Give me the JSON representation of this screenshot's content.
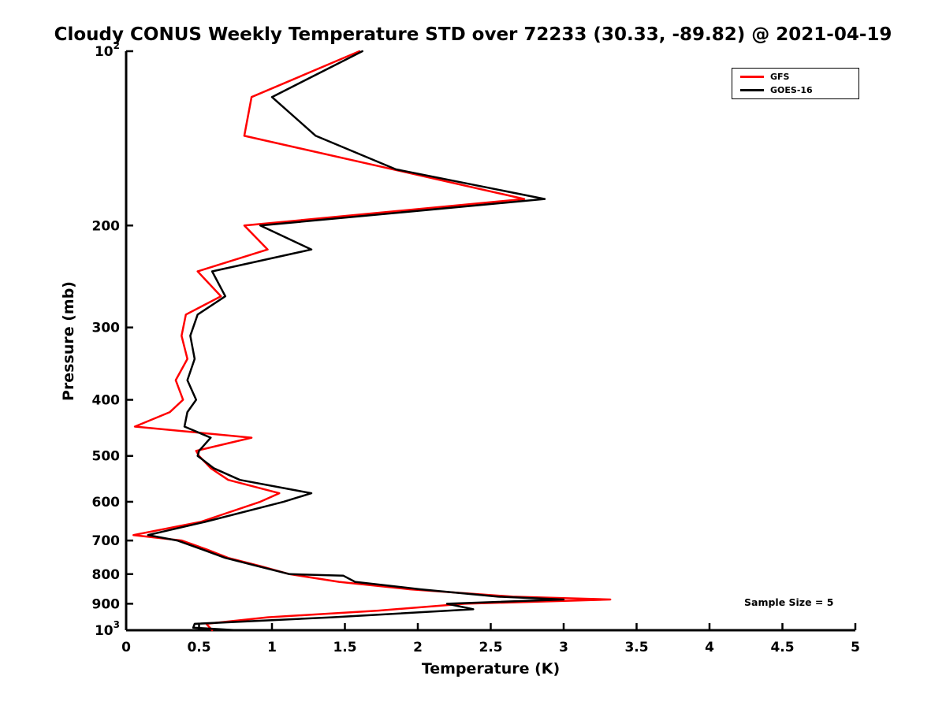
{
  "chart_data": {
    "type": "line",
    "title": "Cloudy CONUS Weekly Temperature STD over 72233 (30.33, -89.82) @ 2021-04-19",
    "xlabel": "Temperature (K)",
    "ylabel": "Pressure (mb)",
    "annotation": "Sample Size = 5",
    "grid": false,
    "legend_position": "top-right",
    "x_axis": {
      "min": 0,
      "max": 5,
      "ticks": [
        {
          "v": 0,
          "label": "0"
        },
        {
          "v": 0.5,
          "label": "0.5"
        },
        {
          "v": 1,
          "label": "1"
        },
        {
          "v": 1.5,
          "label": "1.5"
        },
        {
          "v": 2,
          "label": "2"
        },
        {
          "v": 2.5,
          "label": "2.5"
        },
        {
          "v": 3,
          "label": "3"
        },
        {
          "v": 3.5,
          "label": "3.5"
        },
        {
          "v": 4,
          "label": "4"
        },
        {
          "v": 4.5,
          "label": "4.5"
        },
        {
          "v": 5,
          "label": "5"
        }
      ]
    },
    "y_axis": {
      "scale": "log",
      "min": 100,
      "max": 1000,
      "inverted": true,
      "ticks": [
        {
          "v": 100,
          "label": "10^2"
        },
        {
          "v": 200,
          "label": "200"
        },
        {
          "v": 300,
          "label": "300"
        },
        {
          "v": 400,
          "label": "400"
        },
        {
          "v": 500,
          "label": "500"
        },
        {
          "v": 600,
          "label": "600"
        },
        {
          "v": 700,
          "label": "700"
        },
        {
          "v": 800,
          "label": "800"
        },
        {
          "v": 900,
          "label": "900"
        },
        {
          "v": 1000,
          "label": "10^3"
        }
      ]
    },
    "series": [
      {
        "name": "GFS",
        "color": "#ff0000",
        "line_width": 2.5,
        "pressure_mb": [
          100,
          120,
          140,
          180,
          200,
          220,
          240,
          265,
          285,
          310,
          340,
          370,
          400,
          420,
          445,
          465,
          490,
          500,
          525,
          550,
          580,
          600,
          650,
          685,
          700,
          725,
          750,
          775,
          800,
          825,
          850,
          875,
          885,
          900,
          925,
          950,
          975,
          1000
        ],
        "std_k": [
          1.6,
          0.86,
          0.81,
          2.73,
          0.81,
          0.97,
          0.49,
          0.65,
          0.41,
          0.38,
          0.42,
          0.34,
          0.39,
          0.3,
          0.06,
          0.86,
          0.48,
          0.5,
          0.58,
          0.7,
          1.05,
          0.92,
          0.51,
          0.05,
          0.38,
          0.55,
          0.7,
          0.92,
          1.12,
          1.46,
          1.95,
          2.65,
          3.32,
          2.32,
          1.73,
          0.97,
          0.55,
          0.59
        ]
      },
      {
        "name": "GOES-16",
        "color": "#000000",
        "line_width": 2.5,
        "pressure_mb": [
          100,
          120,
          140,
          160,
          180,
          200,
          220,
          240,
          265,
          285,
          310,
          340,
          370,
          400,
          420,
          445,
          465,
          490,
          500,
          525,
          550,
          580,
          600,
          650,
          685,
          700,
          725,
          750,
          775,
          800,
          805,
          825,
          850,
          875,
          885,
          900,
          920,
          950,
          975,
          990,
          1000
        ],
        "std_k": [
          1.62,
          1.0,
          1.3,
          1.85,
          2.87,
          0.92,
          1.27,
          0.59,
          0.68,
          0.49,
          0.44,
          0.47,
          0.42,
          0.48,
          0.42,
          0.4,
          0.58,
          0.5,
          0.49,
          0.6,
          0.78,
          1.27,
          1.08,
          0.54,
          0.15,
          0.35,
          0.52,
          0.68,
          0.9,
          1.12,
          1.49,
          1.57,
          2.02,
          2.55,
          3.0,
          2.2,
          2.38,
          1.41,
          0.47,
          0.46,
          0.76
        ]
      }
    ]
  }
}
